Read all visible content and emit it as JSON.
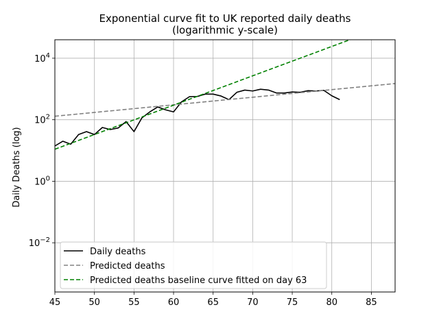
{
  "chart_data": {
    "type": "line",
    "title": "Exponential curve fit to UK reported daily deaths",
    "subtitle": "(logarithmic y-scale)",
    "xlabel": "",
    "ylabel": "Daily Deaths (log)",
    "xlim": [
      45,
      88
    ],
    "ylim_log10": [
      -3.6,
      4.6
    ],
    "yscale": "log",
    "grid": true,
    "legend_position": "lower-left",
    "x_ticks": [
      45,
      50,
      55,
      60,
      65,
      70,
      75,
      80,
      85
    ],
    "x_tick_labels": [
      "45",
      "50",
      "55",
      "60",
      "65",
      "70",
      "75",
      "80",
      "85"
    ],
    "y_ticks_log10": [
      -2,
      0,
      2,
      4
    ],
    "y_tick_labels": [
      {
        "base": "10",
        "exp": "−2"
      },
      {
        "base": "10",
        "exp": "0"
      },
      {
        "base": "10",
        "exp": "2"
      },
      {
        "base": "10",
        "exp": "4"
      }
    ],
    "series": [
      {
        "name": "Daily deaths",
        "color": "#000000",
        "style": "solid",
        "x": [
          45,
          46,
          47,
          48,
          49,
          50,
          51,
          52,
          53,
          54,
          55,
          56,
          57,
          58,
          59,
          60,
          61,
          62,
          63,
          64,
          65,
          66,
          67,
          68,
          69,
          70,
          71,
          72,
          73,
          74,
          75,
          76,
          77,
          78,
          79,
          80,
          81
        ],
        "y": [
          14,
          20,
          16,
          33,
          41,
          33,
          56,
          48,
          54,
          87,
          41,
          115,
          180,
          260,
          210,
          180,
          380,
          560,
          570,
          680,
          680,
          590,
          450,
          780,
          920,
          860,
          980,
          920,
          740,
          740,
          800,
          780,
          880,
          860,
          900,
          600,
          450
        ]
      },
      {
        "name": "Predicted deaths",
        "color": "#808080",
        "style": "dashed",
        "x": [
          45,
          88
        ],
        "y": [
          130,
          1500
        ]
      },
      {
        "name": "Predicted deaths baseline curve fitted on day 63",
        "color": "#008000",
        "style": "dashed",
        "x": [
          45,
          88
        ],
        "y": [
          11,
          140000
        ]
      }
    ]
  }
}
